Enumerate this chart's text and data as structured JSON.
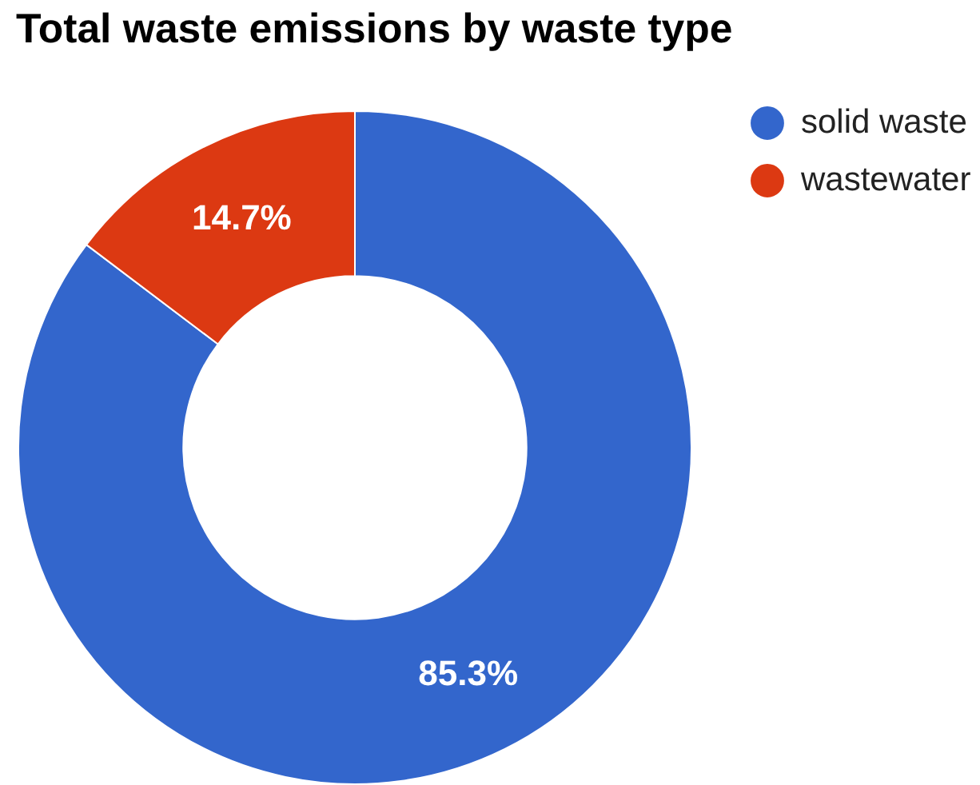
{
  "chart_data": {
    "type": "donut",
    "title": "Total waste emissions by waste type",
    "categories": [
      "solid waste",
      "wastewater"
    ],
    "values": [
      85.3,
      14.7
    ],
    "colors": [
      "#3366cc",
      "#dc3912"
    ],
    "value_labels": [
      "85.3%",
      "14.7%"
    ],
    "legend": "top right"
  }
}
